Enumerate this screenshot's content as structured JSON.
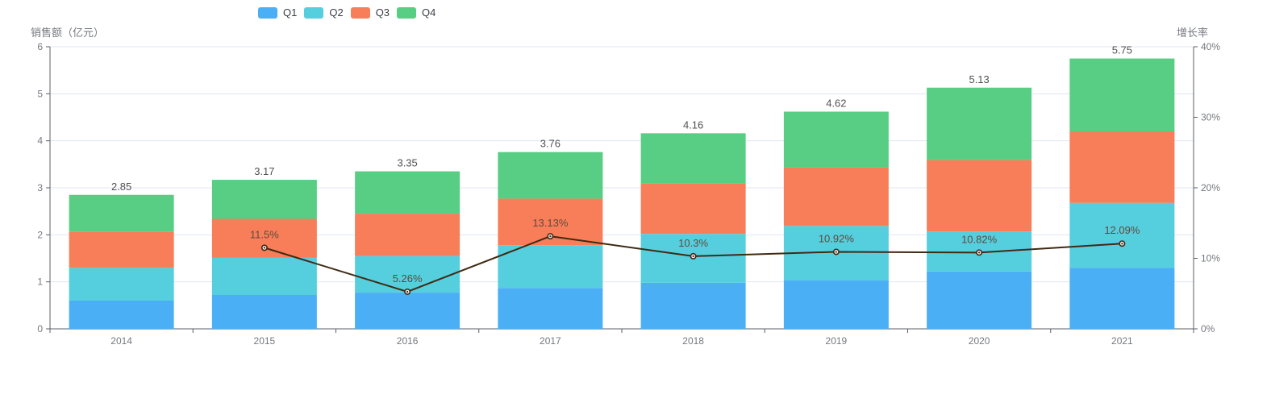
{
  "legend": {
    "items": [
      {
        "id": "q1",
        "label": "Q1",
        "color": "#4BAFF5"
      },
      {
        "id": "q2",
        "label": "Q2",
        "color": "#55CEDE"
      },
      {
        "id": "q3",
        "label": "Q3",
        "color": "#F87E59"
      },
      {
        "id": "q4",
        "label": "Q4",
        "color": "#57CE83"
      }
    ]
  },
  "axes": {
    "left": {
      "title": "销售额（亿元）",
      "ticks": [
        {
          "v": 0,
          "label": "0"
        },
        {
          "v": 1,
          "label": "1"
        },
        {
          "v": 2,
          "label": "2"
        },
        {
          "v": 3,
          "label": "3"
        },
        {
          "v": 4,
          "label": "4"
        },
        {
          "v": 5,
          "label": "5"
        },
        {
          "v": 6,
          "label": "6"
        }
      ]
    },
    "right": {
      "title": "增长率",
      "ticks": [
        {
          "v": 0,
          "label": "0%"
        },
        {
          "v": 10,
          "label": "10%"
        },
        {
          "v": 20,
          "label": "20%"
        },
        {
          "v": 30,
          "label": "30%"
        },
        {
          "v": 40,
          "label": "40%"
        }
      ]
    }
  },
  "chart_data": {
    "type": "bar",
    "subtype": "stacked-bar-with-line",
    "title": "",
    "categories": [
      "2014",
      "2015",
      "2016",
      "2017",
      "2018",
      "2019",
      "2020",
      "2021"
    ],
    "series": [
      {
        "name": "Q1",
        "type": "bar",
        "stack": "sales",
        "color": "#4BAFF5",
        "values": [
          0.6,
          0.72,
          0.77,
          0.87,
          0.98,
          1.03,
          1.22,
          1.3
        ]
      },
      {
        "name": "Q2",
        "type": "bar",
        "stack": "sales",
        "color": "#55CEDE",
        "values": [
          0.7,
          0.79,
          0.78,
          0.91,
          1.04,
          1.16,
          0.85,
          1.38
        ]
      },
      {
        "name": "Q3",
        "type": "bar",
        "stack": "sales",
        "color": "#F87E59",
        "values": [
          0.76,
          0.83,
          0.9,
          0.99,
          1.08,
          1.24,
          1.52,
          1.52
        ]
      },
      {
        "name": "Q4",
        "type": "bar",
        "stack": "sales",
        "color": "#57CE83",
        "values": [
          0.79,
          0.83,
          0.9,
          0.99,
          1.06,
          1.19,
          1.54,
          1.55
        ]
      },
      {
        "name": "增长率",
        "type": "line",
        "axis": "right",
        "color": "#402A12",
        "values": [
          null,
          11.5,
          5.26,
          13.13,
          10.3,
          10.92,
          10.82,
          12.09
        ],
        "point_labels": [
          "",
          "11.5%",
          "5.26%",
          "13.13%",
          "10.3%",
          "10.92%",
          "10.82%",
          "12.09%"
        ]
      }
    ],
    "stack_total_labels": [
      "2.85",
      "3.17",
      "3.35",
      "3.76",
      "4.16",
      "4.62",
      "5.13",
      "5.75"
    ],
    "xlabel": "",
    "ylabel_left": "销售额（亿元）",
    "ylabel_right": "增长率",
    "ylim_left": [
      0,
      6
    ],
    "ylim_right": [
      0,
      40
    ],
    "grid": true,
    "legend_position": "top-left"
  },
  "colors": {
    "background": "#ffffff",
    "gridline": "#E0E6F1",
    "axis_line": "#5B5F66",
    "tick_label": "#76797f",
    "total_label": "#525252",
    "line_label": "#5E4B3A",
    "marker_fill": "#f4f6f8"
  }
}
